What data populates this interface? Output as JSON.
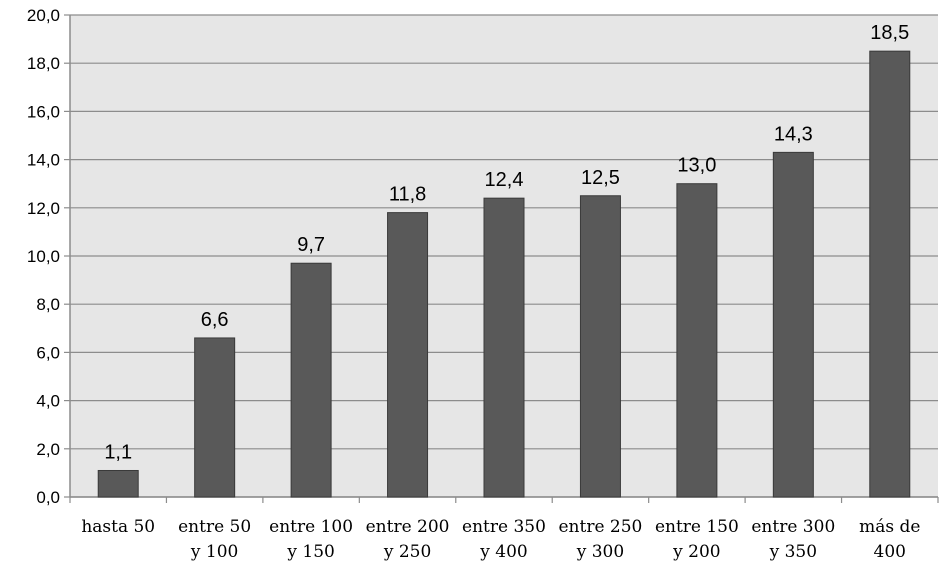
{
  "chart_data": {
    "type": "bar",
    "categories": [
      [
        "hasta 50"
      ],
      [
        "entre 50",
        "y 100"
      ],
      [
        "entre 100",
        "y 150"
      ],
      [
        "entre 200",
        "y 250"
      ],
      [
        "entre 350",
        "y 400"
      ],
      [
        "entre 250",
        "y 300"
      ],
      [
        "entre 150",
        "y 200"
      ],
      [
        "entre 300",
        "y 350"
      ],
      [
        "más de",
        "400"
      ]
    ],
    "values": [
      1.1,
      6.6,
      9.7,
      11.8,
      12.4,
      12.5,
      13.0,
      14.3,
      18.5
    ],
    "data_labels": [
      "1,1",
      "6,6",
      "9,7",
      "11,8",
      "12,4",
      "12,5",
      "13,0",
      "14,3",
      "18,5"
    ],
    "ylim": [
      0,
      20
    ],
    "y_ticks": [
      0,
      2,
      4,
      6,
      8,
      10,
      12,
      14,
      16,
      18,
      20
    ],
    "y_tick_labels": [
      "0,0",
      "2,0",
      "4,0",
      "6,0",
      "8,0",
      "10,0",
      "12,0",
      "14,0",
      "16,0",
      "18,0",
      "20,0"
    ],
    "title": "",
    "xlabel": "",
    "ylabel": "",
    "grid": true,
    "legend": "none",
    "colors": {
      "bar": "#595959",
      "plot_background": "#e6e6e6",
      "grid": "#8c8c8c",
      "axis": "#8c8c8c"
    }
  }
}
